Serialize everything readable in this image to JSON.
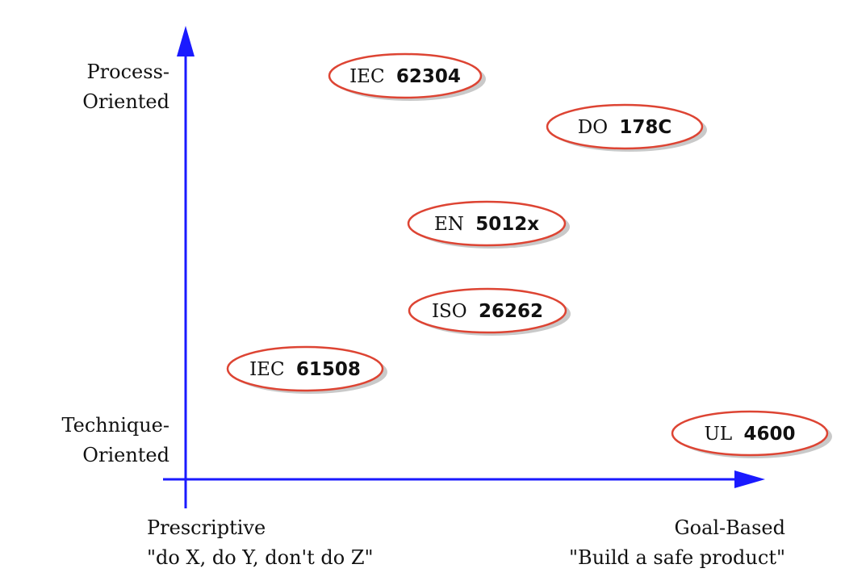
{
  "colors": {
    "axis": "#1a1aff",
    "ellipse_stroke": "#dd4433",
    "ellipse_fill": "#ffffff",
    "shadow": "#bbbbbb",
    "text": "#111111"
  },
  "y_axis": {
    "top_label_line1": "Process-",
    "top_label_line2": "Oriented",
    "bottom_label_line1": "Technique-",
    "bottom_label_line2": "Oriented"
  },
  "x_axis": {
    "left_label_line1": "Prescriptive",
    "left_label_line2": "\"do X, do Y, don't do Z\"",
    "right_label_line1": "Goal-Based",
    "right_label_line2": "\"Build a safe product\""
  },
  "standards": [
    {
      "prefix": "IEC",
      "number": "62304"
    },
    {
      "prefix": "DO",
      "number": "178C"
    },
    {
      "prefix": "EN",
      "number": "5012x"
    },
    {
      "prefix": "ISO",
      "number": "26262"
    },
    {
      "prefix": "IEC",
      "number": "61508"
    },
    {
      "prefix": "UL",
      "number": "4600"
    }
  ]
}
